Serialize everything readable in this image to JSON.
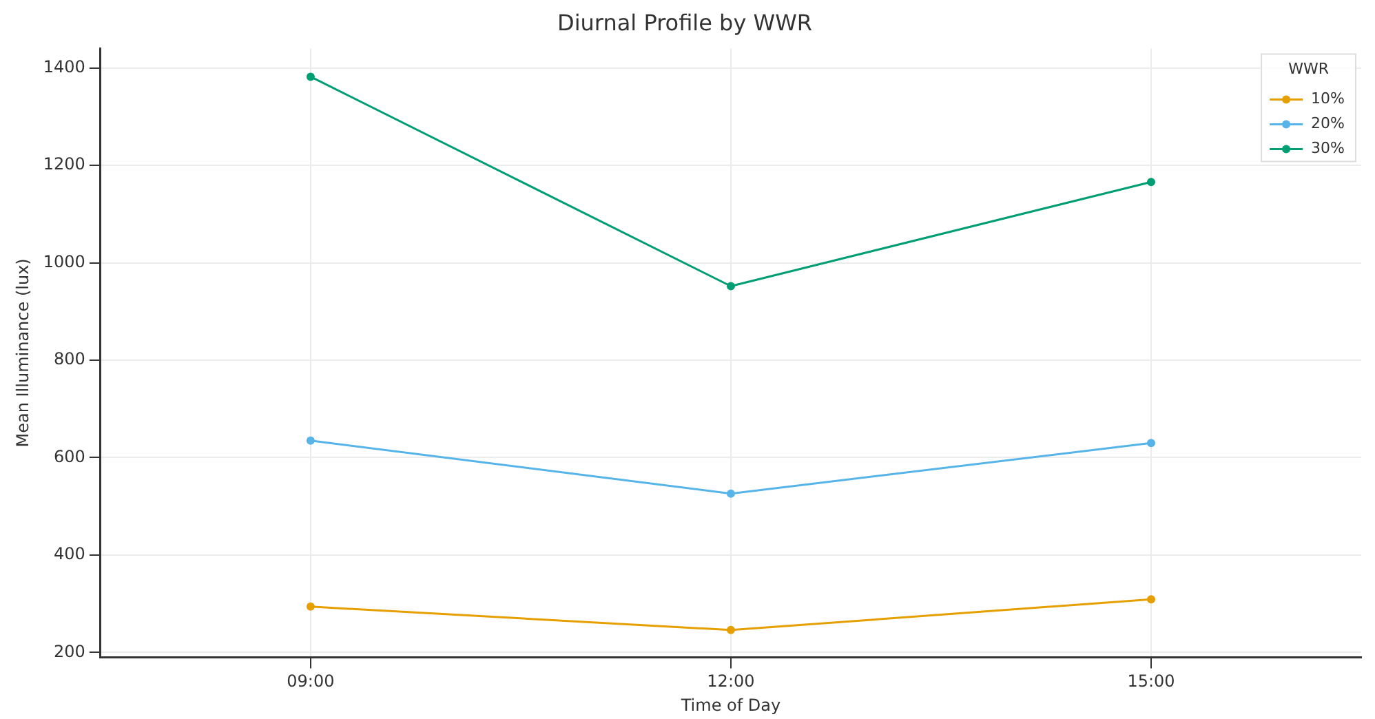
{
  "chart_data": {
    "type": "line",
    "title": "Diurnal Profile by WWR",
    "xlabel": "Time of Day",
    "ylabel": "Mean Illuminance (lux)",
    "legend_title": "WWR",
    "categories": [
      "09:00",
      "12:00",
      "15:00"
    ],
    "series": [
      {
        "name": "10%",
        "color": "#e69f00",
        "values": [
          294,
          246,
          309
        ]
      },
      {
        "name": "20%",
        "color": "#56b4e9",
        "values": [
          635,
          526,
          630
        ]
      },
      {
        "name": "30%",
        "color": "#009e73",
        "values": [
          1382,
          952,
          1166
        ]
      }
    ],
    "ylim": [
      190,
      1440
    ],
    "yticks": [
      200,
      400,
      600,
      800,
      1000,
      1200,
      1400
    ],
    "grid": true,
    "legend": "top right",
    "marker": "circle",
    "line_style": "solid"
  }
}
